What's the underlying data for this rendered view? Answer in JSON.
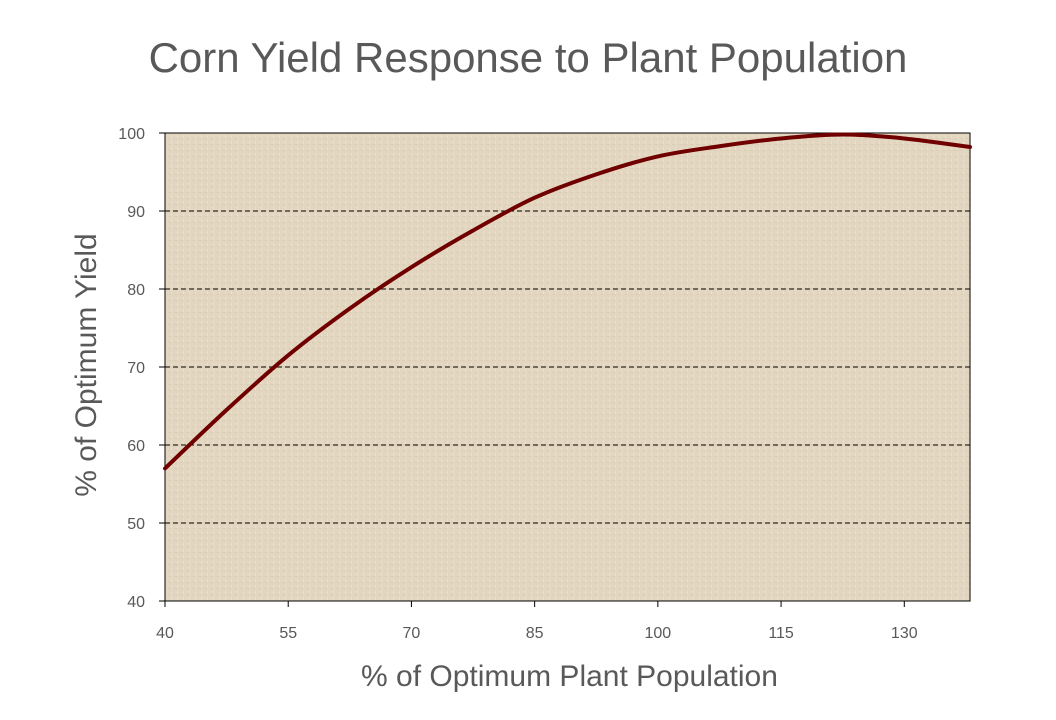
{
  "chart_data": {
    "type": "line",
    "title": "Corn Yield Response to Plant Population",
    "xlabel": "% of Optimum Plant Population",
    "ylabel": "% of Optimum Yield",
    "xlim": [
      40,
      138
    ],
    "ylim": [
      40,
      100
    ],
    "x_ticks": [
      40,
      55,
      70,
      85,
      100,
      115,
      130
    ],
    "y_ticks": [
      40,
      50,
      60,
      70,
      80,
      90,
      100
    ],
    "grid": "horizontal dashed",
    "plot_background": "#e3d6c0",
    "series": [
      {
        "color": "#700000",
        "points": [
          [
            40,
            57.0
          ],
          [
            47.5,
            64.5
          ],
          [
            55,
            71.5
          ],
          [
            62.5,
            77.5
          ],
          [
            70,
            82.8
          ],
          [
            77.5,
            87.5
          ],
          [
            85,
            91.7
          ],
          [
            92.5,
            94.7
          ],
          [
            100,
            97.0
          ],
          [
            107.5,
            98.3
          ],
          [
            115,
            99.3
          ],
          [
            122.5,
            99.8
          ],
          [
            130,
            99.3
          ],
          [
            138,
            98.2
          ]
        ]
      }
    ]
  }
}
